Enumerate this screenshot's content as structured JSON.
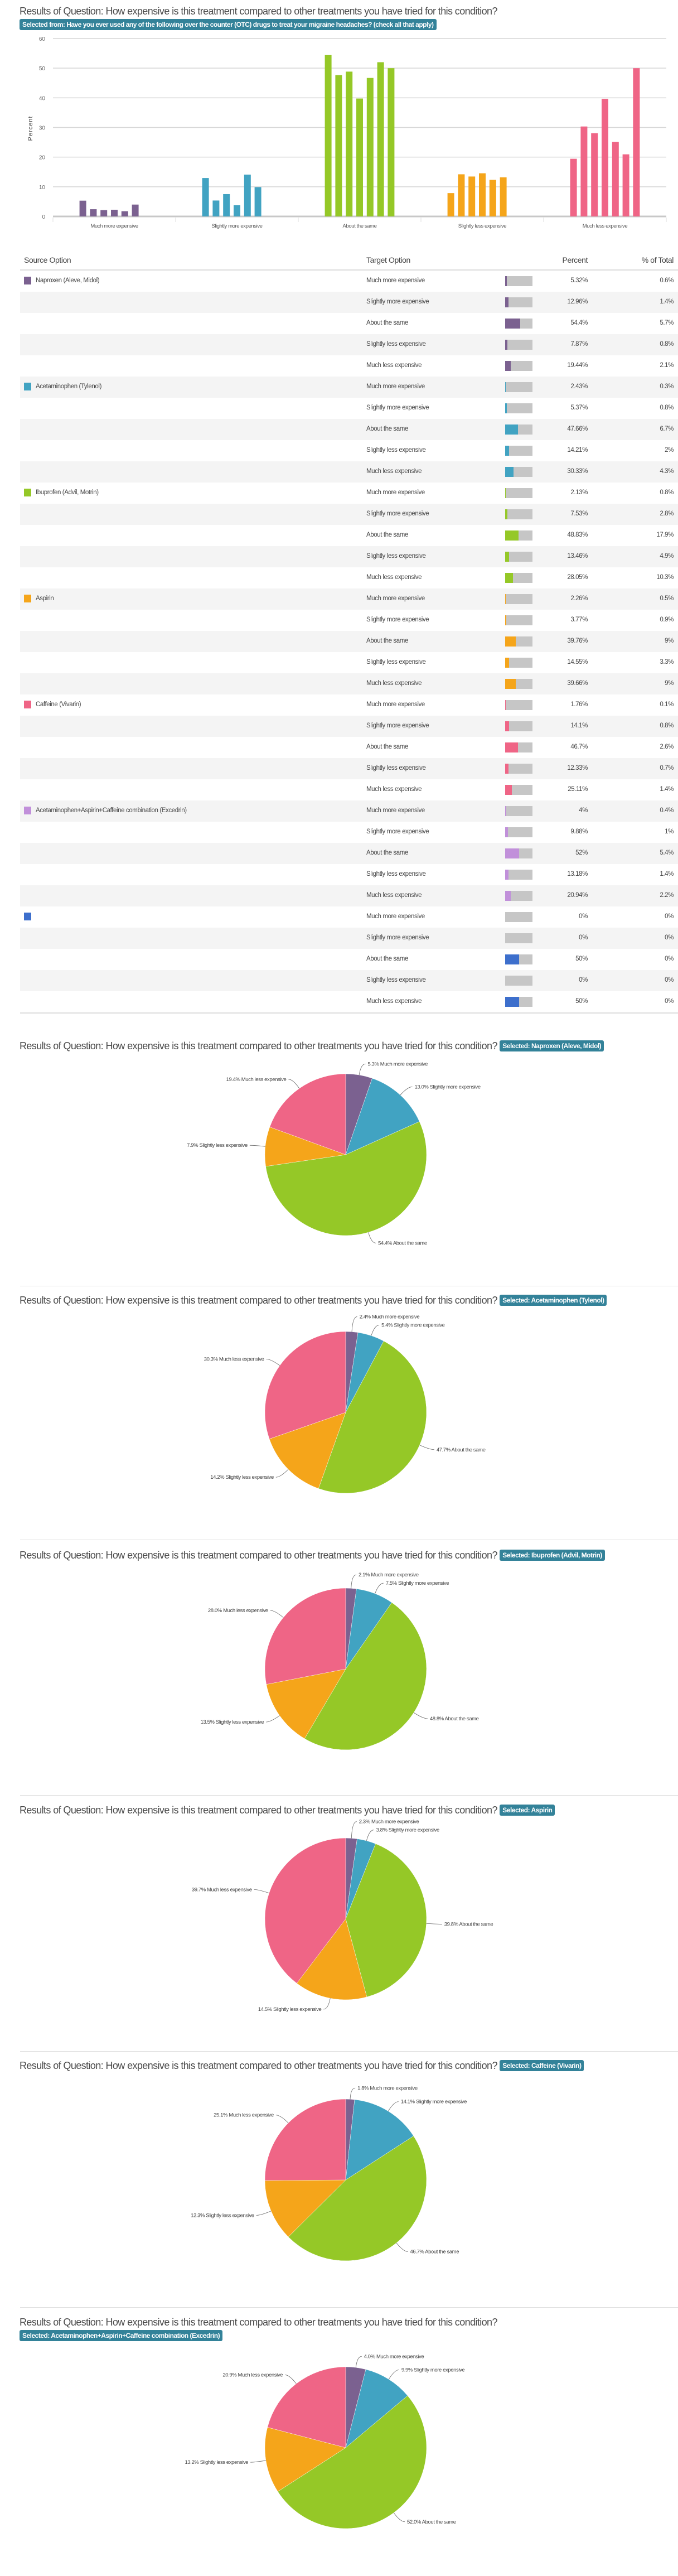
{
  "question_prefix": "Results of Question: How expensive is this treatment compared to other treatments you have tried for this condition?",
  "overview_badge": "Selected from: Have you ever used any of the following over the counter (OTC) drugs to treat your migraine headaches? (check all that apply)",
  "category_colors": [
    "#7b6190",
    "#41a3c2",
    "#95c827",
    "#f5a51a",
    "#ef6586"
  ],
  "chart_data": {
    "type": "bar",
    "title": "",
    "xlabel": "",
    "ylabel": "Percent",
    "ylim": [
      0,
      60
    ],
    "yticks": [
      "0",
      "10",
      "20",
      "30",
      "40",
      "50",
      "60"
    ],
    "grid": true,
    "categories": [
      "Much more expensive",
      "Slightly more expensive",
      "About the same",
      "Slightly less expensive",
      "Much less expensive"
    ],
    "series": [
      {
        "values": [
          5.32,
          12.96,
          54.4,
          7.87,
          19.44
        ]
      },
      {
        "values": [
          2.43,
          5.37,
          47.66,
          14.21,
          30.33
        ]
      },
      {
        "values": [
          2.13,
          7.53,
          48.83,
          13.46,
          28.05
        ]
      },
      {
        "values": [
          2.26,
          3.77,
          39.76,
          14.55,
          39.66
        ]
      },
      {
        "values": [
          1.76,
          14.1,
          46.7,
          12.33,
          25.11
        ]
      },
      {
        "values": [
          4,
          9.88,
          52,
          13.18,
          20.94
        ]
      },
      {
        "values": [
          0,
          0,
          50,
          0,
          50
        ]
      }
    ]
  },
  "table": {
    "headers": {
      "source": "Source Option",
      "target": "Target Option",
      "percent": "Percent",
      "total": "% of Total"
    },
    "groups": [
      {
        "source": "Naproxen (Aleve, Midol)",
        "color": "#7b6190",
        "rows": [
          {
            "target": "Much more expensive",
            "percent": "5.32%",
            "value": 5.32,
            "total": "0.6%"
          },
          {
            "target": "Slightly more expensive",
            "percent": "12.96%",
            "value": 12.96,
            "total": "1.4%"
          },
          {
            "target": "About the same",
            "percent": "54.4%",
            "value": 54.4,
            "total": "5.7%"
          },
          {
            "target": "Slightly less expensive",
            "percent": "7.87%",
            "value": 7.87,
            "total": "0.8%"
          },
          {
            "target": "Much less expensive",
            "percent": "19.44%",
            "value": 19.44,
            "total": "2.1%"
          }
        ]
      },
      {
        "source": "Acetaminophen (Tylenol)",
        "color": "#41a3c2",
        "rows": [
          {
            "target": "Much more expensive",
            "percent": "2.43%",
            "value": 2.43,
            "total": "0.3%"
          },
          {
            "target": "Slightly more expensive",
            "percent": "5.37%",
            "value": 5.37,
            "total": "0.8%"
          },
          {
            "target": "About the same",
            "percent": "47.66%",
            "value": 47.66,
            "total": "6.7%"
          },
          {
            "target": "Slightly less expensive",
            "percent": "14.21%",
            "value": 14.21,
            "total": "2%"
          },
          {
            "target": "Much less expensive",
            "percent": "30.33%",
            "value": 30.33,
            "total": "4.3%"
          }
        ]
      },
      {
        "source": "Ibuprofen (Advil, Motrin)",
        "color": "#95c827",
        "rows": [
          {
            "target": "Much more expensive",
            "percent": "2.13%",
            "value": 2.13,
            "total": "0.8%"
          },
          {
            "target": "Slightly more expensive",
            "percent": "7.53%",
            "value": 7.53,
            "total": "2.8%"
          },
          {
            "target": "About the same",
            "percent": "48.83%",
            "value": 48.83,
            "total": "17.9%"
          },
          {
            "target": "Slightly less expensive",
            "percent": "13.46%",
            "value": 13.46,
            "total": "4.9%"
          },
          {
            "target": "Much less expensive",
            "percent": "28.05%",
            "value": 28.05,
            "total": "10.3%"
          }
        ]
      },
      {
        "source": "Aspirin",
        "color": "#f5a51a",
        "rows": [
          {
            "target": "Much more expensive",
            "percent": "2.26%",
            "value": 2.26,
            "total": "0.5%"
          },
          {
            "target": "Slightly more expensive",
            "percent": "3.77%",
            "value": 3.77,
            "total": "0.9%"
          },
          {
            "target": "About the same",
            "percent": "39.76%",
            "value": 39.76,
            "total": "9%"
          },
          {
            "target": "Slightly less expensive",
            "percent": "14.55%",
            "value": 14.55,
            "total": "3.3%"
          },
          {
            "target": "Much less expensive",
            "percent": "39.66%",
            "value": 39.66,
            "total": "9%"
          }
        ]
      },
      {
        "source": "Caffeine (Vivarin)",
        "color": "#ef6586",
        "rows": [
          {
            "target": "Much more expensive",
            "percent": "1.76%",
            "value": 1.76,
            "total": "0.1%"
          },
          {
            "target": "Slightly more expensive",
            "percent": "14.1%",
            "value": 14.1,
            "total": "0.8%"
          },
          {
            "target": "About the same",
            "percent": "46.7%",
            "value": 46.7,
            "total": "2.6%"
          },
          {
            "target": "Slightly less expensive",
            "percent": "12.33%",
            "value": 12.33,
            "total": "0.7%"
          },
          {
            "target": "Much less expensive",
            "percent": "25.11%",
            "value": 25.11,
            "total": "1.4%"
          }
        ]
      },
      {
        "source": "Acetaminophen+Aspirin+Caffeine combination (Excedrin)",
        "color": "#c190da",
        "rows": [
          {
            "target": "Much more expensive",
            "percent": "4%",
            "value": 4,
            "total": "0.4%"
          },
          {
            "target": "Slightly more expensive",
            "percent": "9.88%",
            "value": 9.88,
            "total": "1%"
          },
          {
            "target": "About the same",
            "percent": "52%",
            "value": 52,
            "total": "5.4%"
          },
          {
            "target": "Slightly less expensive",
            "percent": "13.18%",
            "value": 13.18,
            "total": "1.4%"
          },
          {
            "target": "Much less expensive",
            "percent": "20.94%",
            "value": 20.94,
            "total": "2.2%"
          }
        ]
      },
      {
        "source": "",
        "color": "#3d6fcc",
        "rows": [
          {
            "target": "Much more expensive",
            "percent": "0%",
            "value": 0,
            "total": "0%"
          },
          {
            "target": "Slightly more expensive",
            "percent": "0%",
            "value": 0,
            "total": "0%"
          },
          {
            "target": "About the same",
            "percent": "50%",
            "value": 50,
            "total": "0%"
          },
          {
            "target": "Slightly less expensive",
            "percent": "0%",
            "value": 0,
            "total": "0%"
          },
          {
            "target": "Much less expensive",
            "percent": "50%",
            "value": 50,
            "total": "0%"
          }
        ]
      }
    ]
  },
  "pies": [
    {
      "badge": "Selected: Naproxen (Aleve, Midol)",
      "chart_data": {
        "type": "pie",
        "slices": [
          {
            "label": "5.3% Much more expensive",
            "value": 5.32
          },
          {
            "label": "13.0% Slightly more expensive",
            "value": 12.96
          },
          {
            "label": "54.4% About the same",
            "value": 54.4
          },
          {
            "label": "7.9% Slightly less expensive",
            "value": 7.87
          },
          {
            "label": "19.4% Much less expensive",
            "value": 19.44
          }
        ]
      }
    },
    {
      "badge": "Selected: Acetaminophen (Tylenol)",
      "chart_data": {
        "type": "pie",
        "slices": [
          {
            "label": "2.4% Much more expensive",
            "value": 2.43
          },
          {
            "label": "5.4% Slightly more expensive",
            "value": 5.37
          },
          {
            "label": "47.7% About the same",
            "value": 47.66
          },
          {
            "label": "14.2% Slightly less expensive",
            "value": 14.21
          },
          {
            "label": "30.3% Much less expensive",
            "value": 30.33
          }
        ]
      }
    },
    {
      "badge": "Selected: Ibuprofen (Advil, Motrin)",
      "chart_data": {
        "type": "pie",
        "slices": [
          {
            "label": "2.1% Much more expensive",
            "value": 2.13
          },
          {
            "label": "7.5% Slightly more expensive",
            "value": 7.53
          },
          {
            "label": "48.8% About the same",
            "value": 48.83
          },
          {
            "label": "13.5% Slightly less expensive",
            "value": 13.46
          },
          {
            "label": "28.0% Much less expensive",
            "value": 28.05
          }
        ]
      }
    },
    {
      "badge": "Selected: Aspirin",
      "chart_data": {
        "type": "pie",
        "slices": [
          {
            "label": "2.3% Much more expensive",
            "value": 2.26
          },
          {
            "label": "3.8% Slightly more expensive",
            "value": 3.77
          },
          {
            "label": "39.8% About the same",
            "value": 39.76
          },
          {
            "label": "14.5% Slightly less expensive",
            "value": 14.55
          },
          {
            "label": "39.7% Much less expensive",
            "value": 39.66
          }
        ]
      }
    },
    {
      "badge": "Selected: Caffeine (Vivarin)",
      "chart_data": {
        "type": "pie",
        "slices": [
          {
            "label": "1.8% Much more expensive",
            "value": 1.76
          },
          {
            "label": "14.1% Slightly more expensive",
            "value": 14.1
          },
          {
            "label": "46.7% About the same",
            "value": 46.7
          },
          {
            "label": "12.3% Slightly less expensive",
            "value": 12.33
          },
          {
            "label": "25.1% Much less expensive",
            "value": 25.11
          }
        ]
      }
    },
    {
      "badge": "Selected: Acetaminophen+Aspirin+Caffeine combination (Excedrin)",
      "chart_data": {
        "type": "pie",
        "slices": [
          {
            "label": "4.0% Much more expensive",
            "value": 4
          },
          {
            "label": "9.9% Slightly more expensive",
            "value": 9.88
          },
          {
            "label": "52.0% About the same",
            "value": 52
          },
          {
            "label": "13.2% Slightly less expensive",
            "value": 13.18
          },
          {
            "label": "20.9% Much less expensive",
            "value": 20.94
          }
        ]
      }
    }
  ]
}
